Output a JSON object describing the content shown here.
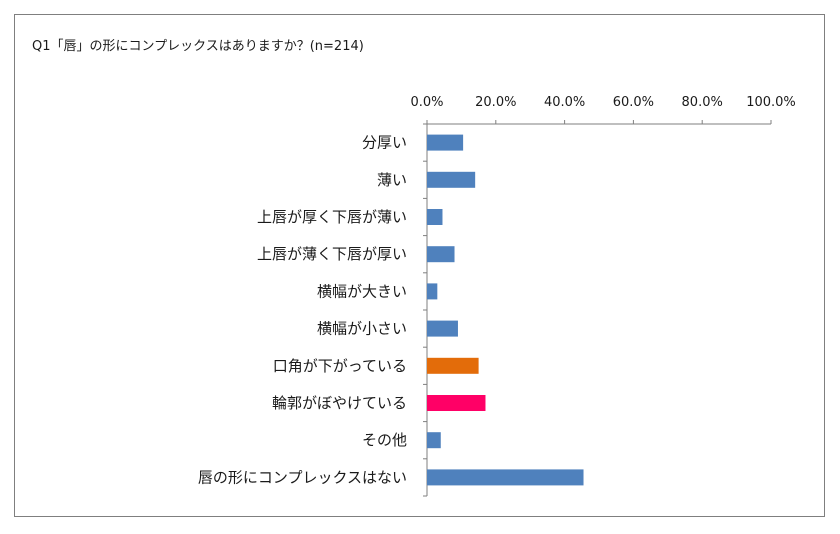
{
  "chart_data": {
    "type": "bar",
    "orientation": "horizontal",
    "title": "Q1「唇」の形にコンプレックスはありますか？(n=214)",
    "categories": [
      "分厚い",
      "薄い",
      "上唇が厚く下唇が薄い",
      "上唇が薄く下唇が厚い",
      "横幅が大きい",
      "横幅が小さい",
      "口角が下がっている",
      "輪郭がぼやけている",
      "その他",
      "唇の形にコンプレックスはない"
    ],
    "values": [
      10.5,
      14.0,
      4.5,
      8.0,
      3.0,
      9.0,
      15.0,
      17.0,
      4.0,
      45.5
    ],
    "colors": [
      "#4f81bd",
      "#4f81bd",
      "#4f81bd",
      "#4f81bd",
      "#4f81bd",
      "#4f81bd",
      "#e36c0a",
      "#ff0066",
      "#4f81bd",
      "#4f81bd"
    ],
    "xlim": [
      0,
      100
    ],
    "xticks": [
      "0.0%",
      "20.0%",
      "40.0%",
      "60.0%",
      "80.0%",
      "100.0%"
    ],
    "xtick_values": [
      0,
      20,
      40,
      60,
      80,
      100
    ],
    "axis_position": "top",
    "grid": false
  }
}
